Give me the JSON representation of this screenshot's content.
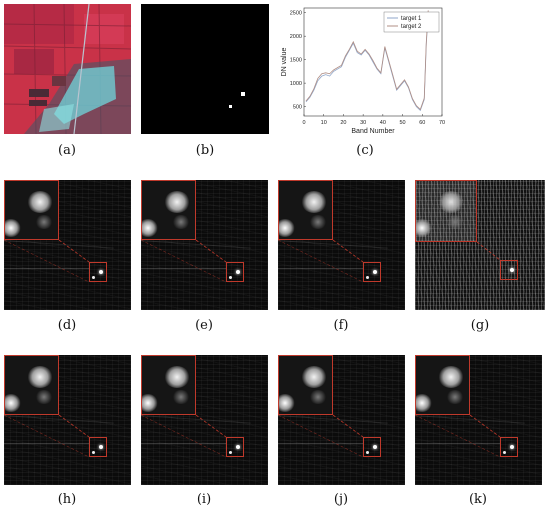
{
  "figure": {
    "captions": {
      "a": "(a)",
      "b": "(b)",
      "c": "(c)",
      "d": "(d)",
      "e": "(e)",
      "f": "(f)",
      "g": "(g)",
      "h": "(h)",
      "i": "(i)",
      "j": "(j)",
      "k": "(k)"
    }
  },
  "colors": {
    "target1": "#8fa6c9",
    "target2": "#b08f86",
    "roi_box": "#c0392b",
    "false_color_red": "#d8324a",
    "urban_cyan": "#7fe7e7"
  },
  "chart_data": {
    "type": "line",
    "xlabel": "Band   Number",
    "ylabel": "DN value",
    "xlim": [
      0,
      70
    ],
    "ylim": [
      300,
      2600
    ],
    "xticks": [
      0,
      10,
      20,
      30,
      40,
      50,
      60,
      70
    ],
    "yticks": [
      500,
      1000,
      1500,
      2000,
      2500
    ],
    "legend_position": "top-right",
    "series": [
      {
        "name": "target 1",
        "x": [
          1,
          3,
          5,
          7,
          9,
          11,
          13,
          15,
          17,
          19,
          21,
          23,
          25,
          27,
          29,
          31,
          33,
          35,
          37,
          39,
          41,
          43,
          45,
          47,
          49,
          51,
          53,
          55,
          57,
          59,
          61,
          62,
          63
        ],
        "y": [
          600,
          700,
          850,
          1050,
          1150,
          1180,
          1150,
          1250,
          1300,
          1350,
          1550,
          1700,
          1850,
          1650,
          1600,
          1700,
          1600,
          1450,
          1300,
          1200,
          1750,
          1450,
          1150,
          850,
          950,
          1050,
          900,
          650,
          500,
          420,
          650,
          1800,
          2500
        ]
      },
      {
        "name": "target 2",
        "x": [
          1,
          3,
          5,
          7,
          9,
          11,
          13,
          15,
          17,
          19,
          21,
          23,
          25,
          27,
          29,
          31,
          33,
          35,
          37,
          39,
          41,
          43,
          45,
          47,
          49,
          51,
          53,
          55,
          57,
          59,
          61,
          62,
          63
        ],
        "y": [
          620,
          720,
          880,
          1100,
          1200,
          1220,
          1200,
          1280,
          1330,
          1380,
          1580,
          1720,
          1880,
          1680,
          1620,
          1720,
          1620,
          1480,
          1320,
          1220,
          1780,
          1480,
          1180,
          870,
          970,
          1070,
          920,
          670,
          520,
          440,
          680,
          1850,
          2550
        ]
      }
    ]
  }
}
